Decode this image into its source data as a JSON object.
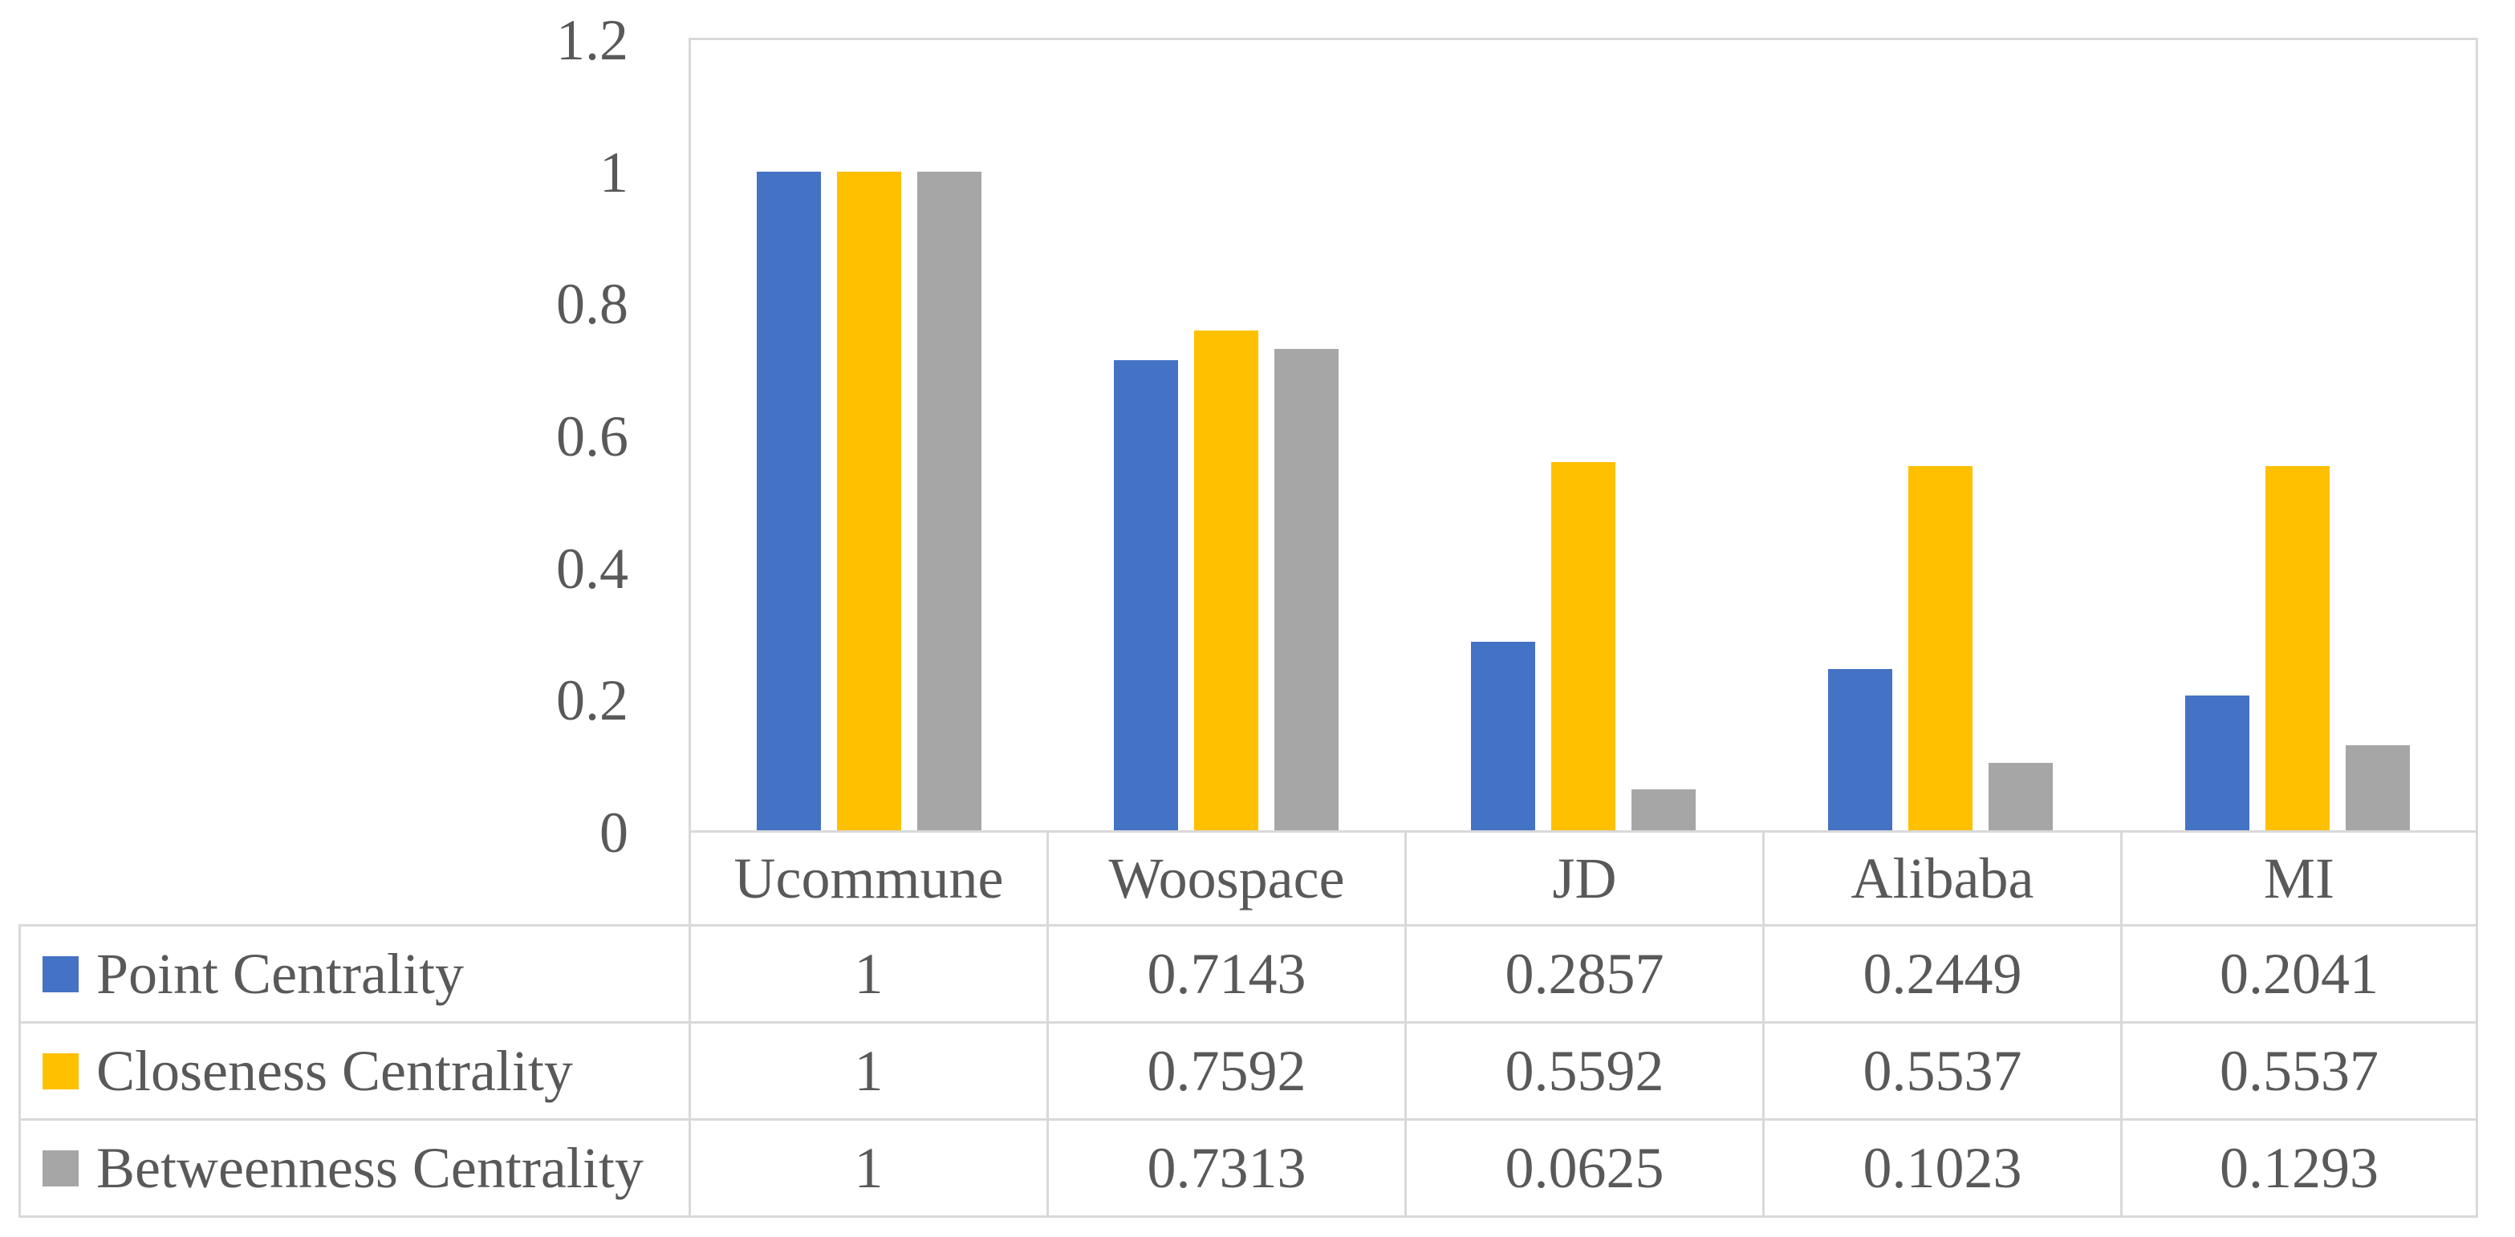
{
  "chart_data": {
    "type": "bar",
    "title": "",
    "xlabel": "",
    "ylabel": "",
    "ylim": [
      0,
      1.2
    ],
    "ytick_step": 0.2,
    "yticks": [
      "1.2",
      "1",
      "0.8",
      "0.6",
      "0.4",
      "0.2",
      "0"
    ],
    "grid": false,
    "legend_position": "data-table-left-column",
    "categories": [
      "Ucommune",
      "Woospace",
      "JD",
      "Alibaba",
      "MI"
    ],
    "series": [
      {
        "name": "Point Centrality",
        "color": "#4472C4",
        "values": [
          1,
          0.7143,
          0.2857,
          0.2449,
          0.2041
        ],
        "labels": [
          "1",
          "0.7143",
          "0.2857",
          "0.2449",
          "0.2041"
        ]
      },
      {
        "name": "Closeness Centrality",
        "color": "#FFC000",
        "values": [
          1,
          0.7592,
          0.5592,
          0.5537,
          0.5537
        ],
        "labels": [
          "1",
          "0.7592",
          "0.5592",
          "0.5537",
          "0.5537"
        ]
      },
      {
        "name": "Betweenness Centrality",
        "color": "#A6A6A6",
        "values": [
          1,
          0.7313,
          0.0625,
          0.1023,
          0.1293
        ],
        "labels": [
          "1",
          "0.7313",
          "0.0625",
          "0.1023",
          "0.1293"
        ]
      }
    ]
  },
  "colors": {
    "plot_border": "#D9D9D9",
    "table_border": "#D9D9D9",
    "text": "#595959",
    "background": "#FFFFFF"
  }
}
